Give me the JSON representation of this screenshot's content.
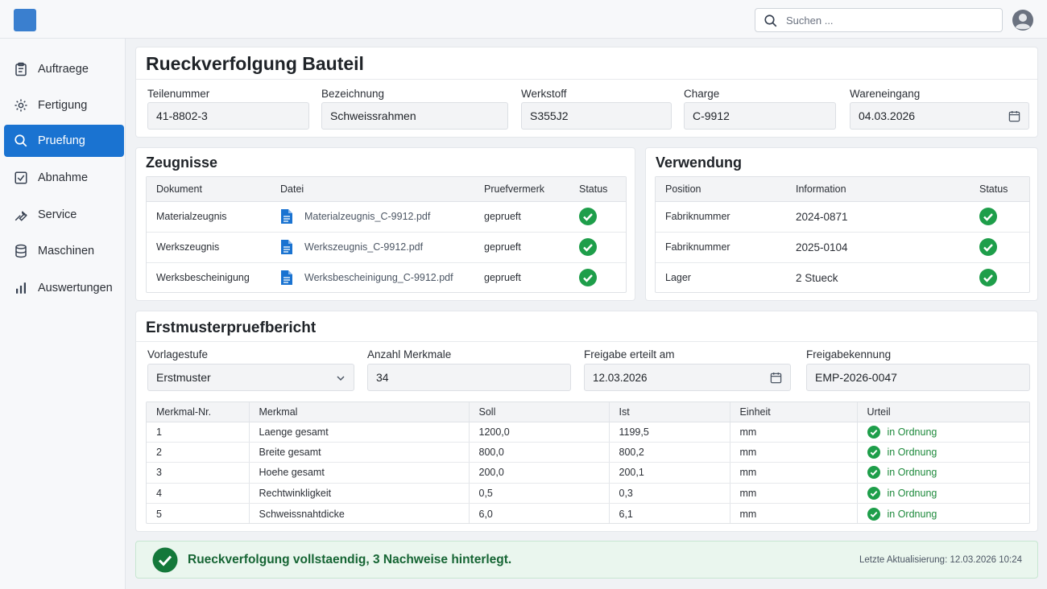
{
  "header": {
    "search_placeholder": "Suchen ..."
  },
  "sidebar": {
    "items": [
      {
        "label": "Auftraege",
        "icon": "clipboard-icon"
      },
      {
        "label": "Fertigung",
        "icon": "gear-icon"
      },
      {
        "label": "Pruefung",
        "icon": "search-icon",
        "active": true
      },
      {
        "label": "Abnahme",
        "icon": "checkbox-icon"
      },
      {
        "label": "Service",
        "icon": "wrench-icon"
      },
      {
        "label": "Maschinen",
        "icon": "database-icon"
      },
      {
        "label": "Auswertungen",
        "icon": "bar-chart-icon"
      }
    ]
  },
  "part": {
    "title": "Rueckverfolgung Bauteil",
    "fields": {
      "teilenummer": {
        "label": "Teilenummer",
        "value": "41-8802-3"
      },
      "bezeichnung": {
        "label": "Bezeichnung",
        "value": "Schweissrahmen"
      },
      "werkstoff": {
        "label": "Werkstoff",
        "value": "S355J2"
      },
      "charge": {
        "label": "Charge",
        "value": "C-9912"
      },
      "wareneingang": {
        "label": "Wareneingang",
        "value": "04.03.2026"
      }
    }
  },
  "zeugnisse": {
    "title": "Zeugnisse",
    "columns": [
      "Dokument",
      "Datei",
      "Pruefvermerk",
      "Status"
    ],
    "rows": [
      {
        "dokument": "Materialzeugnis",
        "datei": "Materialzeugnis_C-9912.pdf",
        "vermerk": "geprueft"
      },
      {
        "dokument": "Werkszeugnis",
        "datei": "Werkszeugnis_C-9912.pdf",
        "vermerk": "geprueft"
      },
      {
        "dokument": "Werksbescheinigung",
        "datei": "Werksbescheinigung_C-9912.pdf",
        "vermerk": "geprueft"
      }
    ]
  },
  "verwendung": {
    "title": "Verwendung",
    "columns": [
      "Position",
      "Information",
      "Status"
    ],
    "rows": [
      {
        "position": "Fabriknummer",
        "info": "2024-0871"
      },
      {
        "position": "Fabriknummer",
        "info": "2025-0104"
      },
      {
        "position": "Lager",
        "info": "2 Stueck"
      }
    ]
  },
  "bericht": {
    "title": "Erstmusterpruefbericht",
    "fields": {
      "vorlagestufe": {
        "label": "Vorlagestufe",
        "value": "Erstmuster"
      },
      "anzahl": {
        "label": "Anzahl Merkmale",
        "value": "34"
      },
      "freigabe": {
        "label": "Freigabe erteilt am",
        "value": "12.03.2026"
      },
      "kennung": {
        "label": "Freigabekennung",
        "value": "EMP-2026-0047"
      }
    },
    "columns": [
      "Merkmal-Nr.",
      "Merkmal",
      "Soll",
      "Ist",
      "Einheit",
      "Urteil"
    ],
    "rows": [
      {
        "nr": "1",
        "merkmal": "Laenge gesamt",
        "soll": "1200,0",
        "ist": "1199,5",
        "einheit": "mm",
        "urteil": "in Ordnung"
      },
      {
        "nr": "2",
        "merkmal": "Breite gesamt",
        "soll": "800,0",
        "ist": "800,2",
        "einheit": "mm",
        "urteil": "in Ordnung"
      },
      {
        "nr": "3",
        "merkmal": "Hoehe gesamt",
        "soll": "200,0",
        "ist": "200,1",
        "einheit": "mm",
        "urteil": "in Ordnung"
      },
      {
        "nr": "4",
        "merkmal": "Rechtwinkligkeit",
        "soll": "0,5",
        "ist": "0,3",
        "einheit": "mm",
        "urteil": "in Ordnung"
      },
      {
        "nr": "5",
        "merkmal": "Schweissnahtdicke",
        "soll": "6,0",
        "ist": "6,1",
        "einheit": "mm",
        "urteil": "in Ordnung"
      }
    ]
  },
  "banner": {
    "text": "Rueckverfolgung vollstaendig, 3 Nachweise hinterlegt.",
    "meta": "Letzte Aktualisierung: 12.03.2026 10:24"
  },
  "colors": {
    "accent": "#1a73d1",
    "success": "#1e8a3c"
  }
}
